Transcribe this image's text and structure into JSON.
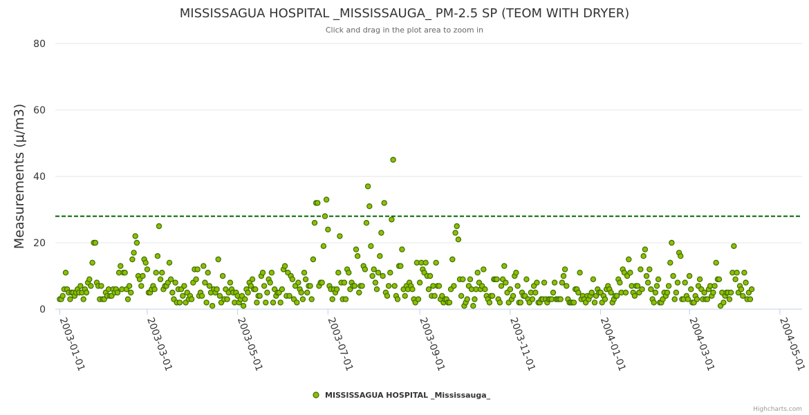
{
  "chart_data": {
    "type": "scatter",
    "title": "MISSISSAGUA HOSPITAL _MISSISSAUGA_ PM-2.5 SP (TEOM WITH DRYER)",
    "subtitle": "Click and drag in the plot area to zoom in",
    "ylabel": "Measurements (μ/m3)",
    "ylim": [
      0,
      80
    ],
    "yticks": [
      0,
      20,
      40,
      60,
      80
    ],
    "xlim": [
      "2002-12-29",
      "2004-05-16"
    ],
    "xticks": [
      "2003-01-01",
      "2003-03-01",
      "2003-05-01",
      "2003-07-01",
      "2003-09-01",
      "2003-11-01",
      "2004-01-01",
      "2004-03-01",
      "2004-05-01"
    ],
    "reference_line": {
      "value": 28,
      "color": "#006600",
      "style": "dashed"
    },
    "legend": {
      "position": "bottom-center",
      "label": "MISSISSAGUA HOSPITAL _Mississauga_"
    },
    "credits": "Highcharts.com",
    "series": [
      {
        "name": "MISSISSAGUA HOSPITAL _Mississauga_",
        "color": "#8fbf00",
        "values": [
          3,
          3,
          4,
          6,
          11,
          6,
          5,
          3,
          5,
          5,
          4,
          5,
          6,
          5,
          7,
          5,
          3,
          6,
          5,
          8,
          9,
          7,
          14,
          20,
          20,
          8,
          7,
          3,
          7,
          3,
          3,
          5,
          4,
          6,
          4,
          4,
          6,
          5,
          6,
          5,
          11,
          13,
          6,
          11,
          11,
          6,
          3,
          7,
          5,
          15,
          17,
          22,
          20,
          10,
          9,
          7,
          10,
          15,
          14,
          12,
          5,
          5,
          6,
          7,
          6,
          11,
          16,
          25,
          9,
          11,
          6,
          7,
          7,
          8,
          14,
          9,
          5,
          3,
          8,
          2,
          6,
          2,
          6,
          4,
          7,
          2,
          5,
          3,
          4,
          3,
          8,
          12,
          9,
          12,
          4,
          5,
          4,
          13,
          8,
          2,
          11,
          7,
          5,
          1,
          6,
          5,
          6,
          15,
          4,
          2,
          10,
          3,
          6,
          3,
          5,
          8,
          6,
          5,
          2,
          5,
          4,
          2,
          3,
          4,
          1,
          3,
          6,
          5,
          8,
          7,
          9,
          6,
          6,
          2,
          4,
          4,
          10,
          11,
          7,
          2,
          5,
          9,
          8,
          11,
          2,
          6,
          4,
          5,
          5,
          2,
          6,
          12,
          13,
          4,
          11,
          4,
          10,
          9,
          3,
          7,
          2,
          8,
          6,
          5,
          3,
          11,
          9,
          5,
          7,
          7,
          3,
          15,
          26,
          32,
          32,
          7,
          8,
          8,
          19,
          28,
          33,
          24,
          7,
          6,
          3,
          6,
          5,
          6,
          11,
          22,
          8,
          3,
          8,
          3,
          12,
          11,
          6,
          8,
          7,
          7,
          18,
          16,
          5,
          7,
          7,
          13,
          12,
          26,
          37,
          31,
          19,
          10,
          12,
          8,
          6,
          11,
          16,
          23,
          10,
          32,
          5,
          4,
          7,
          11,
          27,
          45,
          7,
          4,
          3,
          13,
          13,
          18,
          6,
          4,
          7,
          6,
          8,
          7,
          6,
          3,
          2,
          14,
          3,
          8,
          14,
          12,
          11,
          14,
          10,
          6,
          10,
          4,
          7,
          4,
          14,
          7,
          7,
          3,
          4,
          2,
          3,
          3,
          2,
          2,
          6,
          15,
          7,
          23,
          25,
          21,
          9,
          4,
          9,
          1,
          2,
          3,
          7,
          9,
          6,
          1,
          3,
          6,
          11,
          8,
          6,
          7,
          12,
          6,
          4,
          3,
          2,
          4,
          4,
          9,
          9,
          9,
          3,
          2,
          7,
          9,
          13,
          8,
          5,
          2,
          6,
          3,
          4,
          10,
          11,
          7,
          2,
          2,
          5,
          4,
          4,
          9,
          3,
          2,
          5,
          3,
          7,
          5,
          8,
          2,
          2,
          3,
          3,
          8,
          3,
          2,
          3,
          3,
          3,
          5,
          8,
          3,
          3,
          3,
          3,
          8,
          10,
          12,
          7,
          3,
          2,
          2,
          2,
          2,
          6,
          6,
          5,
          11,
          3,
          4,
          3,
          2,
          4,
          3,
          4,
          5,
          9,
          2,
          4,
          6,
          5,
          5,
          2,
          4,
          3,
          6,
          7,
          6,
          5,
          2,
          3,
          4,
          4,
          9,
          8,
          5,
          12,
          11,
          5,
          10,
          15,
          11,
          7,
          5,
          4,
          7,
          7,
          5,
          12,
          6,
          16,
          18,
          10,
          8,
          12,
          6,
          3,
          2,
          5,
          7,
          9,
          2,
          2,
          3,
          5,
          4,
          5,
          7,
          14,
          20,
          10,
          3,
          5,
          8,
          17,
          16,
          3,
          3,
          8,
          4,
          3,
          10,
          6,
          2,
          2,
          4,
          3,
          7,
          9,
          6,
          3,
          5,
          3,
          3,
          6,
          7,
          4,
          5,
          7,
          14,
          9,
          9,
          1,
          5,
          2,
          4,
          5,
          5,
          3,
          5,
          11,
          19,
          9,
          11,
          5,
          7,
          6,
          4,
          11,
          8,
          3,
          5,
          3,
          6
        ]
      }
    ]
  }
}
